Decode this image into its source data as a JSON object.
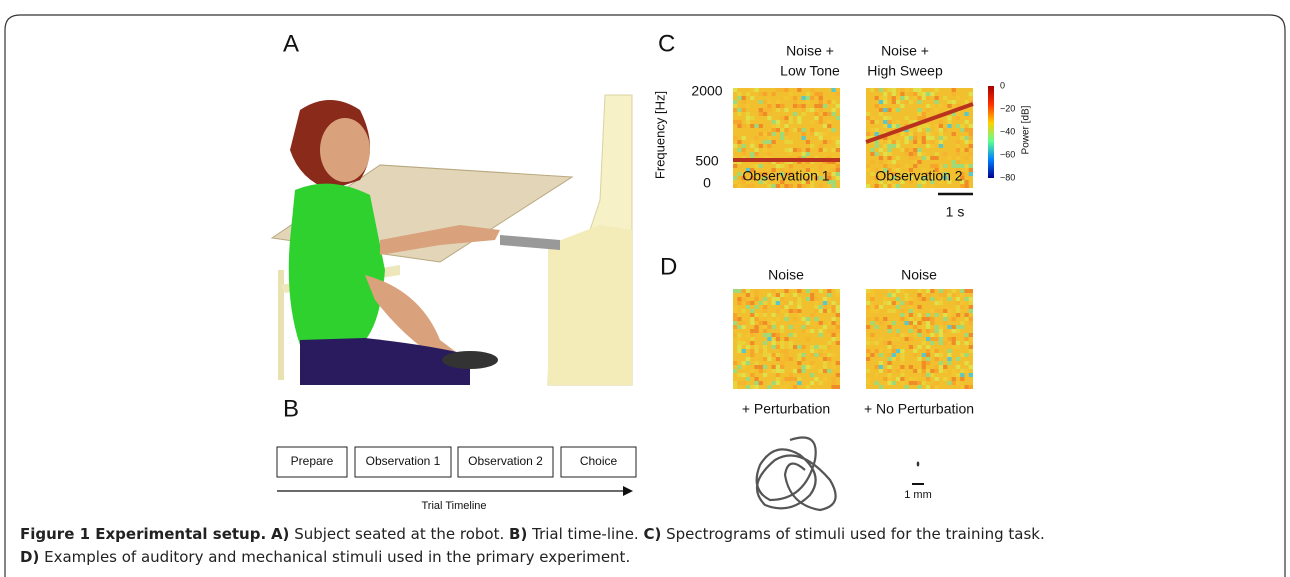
{
  "panels": {
    "a": {
      "label": "A"
    },
    "b": {
      "label": "B",
      "steps": [
        "Prepare",
        "Observation 1",
        "Observation 2",
        "Choice"
      ],
      "axis_label": "Trial Timeline"
    },
    "c": {
      "label": "C",
      "titles": [
        [
          "Noise +",
          "Low Tone"
        ],
        [
          "Noise +",
          "High Sweep"
        ]
      ],
      "y_label": "Frequency [Hz]",
      "y_ticks": [
        "2000",
        "500",
        "0"
      ],
      "spectrogram_labels": [
        "Observation 1",
        "Observation 2"
      ],
      "time_scale": "1 s",
      "colorbar_ticks": [
        "0",
        "−20",
        "−40",
        "−60",
        "−80"
      ],
      "colorbar_label": "Power  [dB]"
    },
    "d": {
      "label": "D",
      "titles": [
        "Noise",
        "Noise"
      ],
      "conditions": [
        "+ Perturbation",
        "+ No Perturbation"
      ],
      "scale": "1 mm"
    }
  },
  "caption": {
    "title": "Figure 1 Experimental setup.",
    "parts": [
      {
        "label": "A)",
        "text": "Subject seated at the robot."
      },
      {
        "label": "B)",
        "text": "Trial time-line."
      },
      {
        "label": "C)",
        "text": "Spectrograms of stimuli used for the training task."
      },
      {
        "label": "D)",
        "text": "Examples of auditory and mechanical stimuli used in the primary experiment."
      }
    ]
  }
}
